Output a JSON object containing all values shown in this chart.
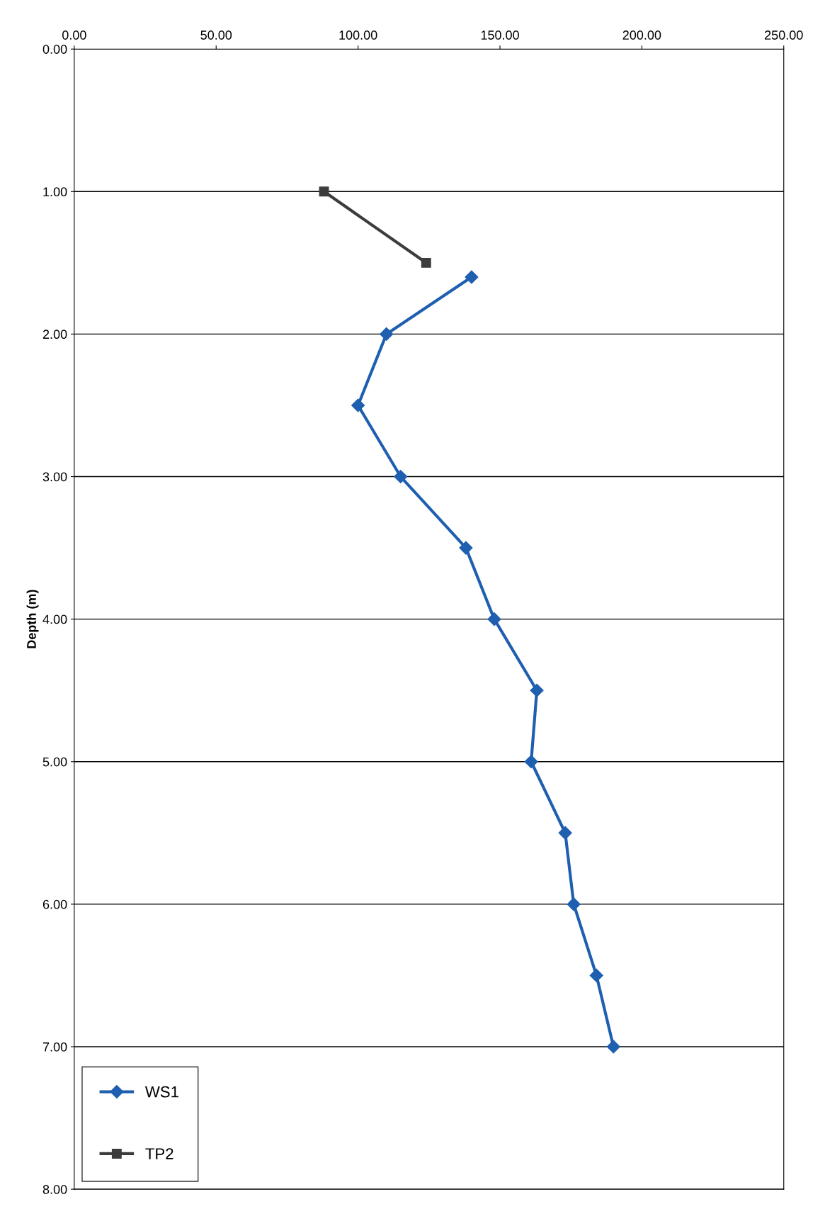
{
  "chart_data": {
    "type": "line",
    "ylabel": "Depth (m)",
    "xlim": [
      0,
      250
    ],
    "xticks": [
      {
        "value": 0,
        "label": "0.00"
      },
      {
        "value": 50,
        "label": "50.00"
      },
      {
        "value": 100,
        "label": "100.00"
      },
      {
        "value": 150,
        "label": "150.00"
      },
      {
        "value": 200,
        "label": "200.00"
      },
      {
        "value": 250,
        "label": "250.00"
      }
    ],
    "ylim": [
      8,
      0
    ],
    "yticks": [
      {
        "value": 0,
        "label": "0.00"
      },
      {
        "value": 1,
        "label": "1.00"
      },
      {
        "value": 2,
        "label": "2.00"
      },
      {
        "value": 3,
        "label": "3.00"
      },
      {
        "value": 4,
        "label": "4.00"
      },
      {
        "value": 5,
        "label": "5.00"
      },
      {
        "value": 6,
        "label": "6.00"
      },
      {
        "value": 7,
        "label": "7.00"
      },
      {
        "value": 8,
        "label": "8.00"
      }
    ],
    "grid": "y",
    "legend": "bottom left",
    "line_style": "solid",
    "series": [
      {
        "name": "WS1",
        "color": "#1f5fb0",
        "marker": "diamond",
        "x": [
          140,
          110,
          100,
          115,
          138,
          148,
          163,
          161,
          173,
          176,
          184,
          190
        ],
        "values": [
          1.6,
          2.0,
          2.5,
          3.0,
          3.5,
          4.0,
          4.5,
          5.0,
          5.5,
          6.0,
          6.5,
          7.0
        ]
      },
      {
        "name": "TP2",
        "color": "#3c3c3c",
        "marker": "square",
        "x": [
          88,
          124
        ],
        "values": [
          1.0,
          1.5
        ]
      }
    ]
  }
}
